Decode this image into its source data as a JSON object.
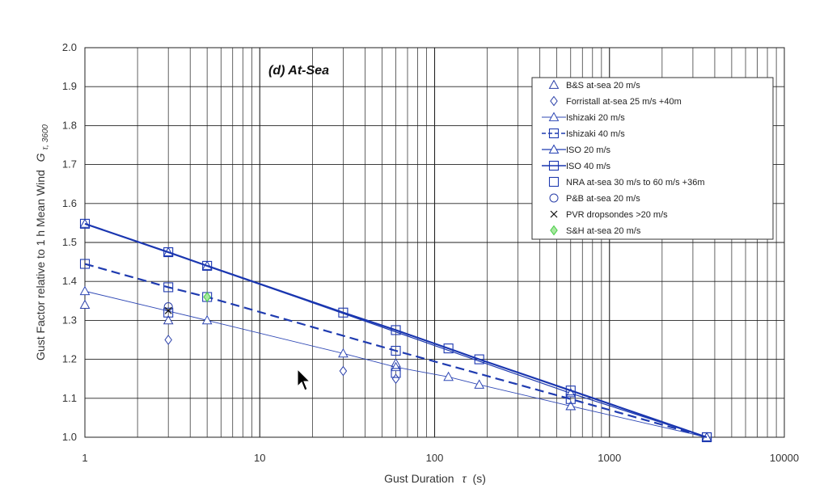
{
  "chart_data": {
    "type": "scatter",
    "title": "(d) At-Sea",
    "xlabel": "Gust Duration",
    "xlabel_symbol": "τ",
    "xlabel_unit": "(s)",
    "ylabel": "Gust Factor relative to 1 h Mean Wind",
    "ylabel_symbol": "G",
    "ylabel_subscript": "τ, 3600",
    "x_scale": "log",
    "xlim": [
      1,
      10000
    ],
    "ylim": [
      1.0,
      2.0
    ],
    "x_ticks": [
      "1",
      "10",
      "100",
      "1000",
      "10000"
    ],
    "y_ticks": [
      "1.0",
      "1.1",
      "1.2",
      "1.3",
      "1.4",
      "1.5",
      "1.6",
      "1.7",
      "1.8",
      "1.9",
      "2.0"
    ],
    "grid": true,
    "legend_position": "top-right",
    "series": [
      {
        "name": "B&S at-sea 20 m/s",
        "marker": "triangle",
        "line": "none",
        "color": "#2a3fa8",
        "points": [
          [
            1,
            1.34
          ],
          [
            3,
            1.3
          ],
          [
            60,
            1.19
          ],
          [
            600,
            1.08
          ]
        ]
      },
      {
        "name": "Forristall at-sea 25 m/s +40m",
        "marker": "diamond",
        "line": "none",
        "color": "#2a3fa8",
        "points": [
          [
            3,
            1.25
          ],
          [
            30,
            1.17
          ],
          [
            60,
            1.15
          ]
        ]
      },
      {
        "name": "Ishizaki 20 m/s",
        "marker": "triangle",
        "line": "thin",
        "color": "#2f48b5",
        "points": [
          [
            1,
            1.375
          ],
          [
            5,
            1.3
          ],
          [
            30,
            1.215
          ],
          [
            60,
            1.18
          ],
          [
            120,
            1.155
          ],
          [
            180,
            1.135
          ],
          [
            600,
            1.08
          ],
          [
            3600,
            1.0
          ]
        ]
      },
      {
        "name": "Ishizaki 40 m/s",
        "marker": "square",
        "line": "dashed",
        "color": "#1f3bb0",
        "points": [
          [
            1,
            1.445
          ],
          [
            3,
            1.385
          ],
          [
            5,
            1.36
          ],
          [
            60,
            1.222
          ],
          [
            600,
            1.098
          ],
          [
            3600,
            1.0
          ]
        ]
      },
      {
        "name": "ISO 20 m/s",
        "marker": "triangle",
        "line": "solid",
        "color": "#1f3bb0",
        "points": [
          [
            1,
            1.548
          ],
          [
            3,
            1.475
          ],
          [
            5,
            1.44
          ],
          [
            600,
            1.113
          ],
          [
            3600,
            1.0
          ]
        ]
      },
      {
        "name": "ISO 40 m/s",
        "marker": "square",
        "line": "thick",
        "color": "#1a36b0",
        "points": [
          [
            1,
            1.548
          ],
          [
            3,
            1.475
          ],
          [
            5,
            1.44
          ],
          [
            30,
            1.32
          ],
          [
            60,
            1.275
          ],
          [
            120,
            1.228
          ],
          [
            180,
            1.2
          ],
          [
            600,
            1.12
          ],
          [
            3600,
            1.0
          ]
        ]
      },
      {
        "name": "NRA at-sea 30 m/s to 60 m/s +36m",
        "marker": "square",
        "line": "none",
        "color": "#1f3bb0",
        "points": [
          [
            3,
            1.32
          ],
          [
            60,
            1.165
          ]
        ]
      },
      {
        "name": "P&B at-sea 20 m/s",
        "marker": "circle",
        "line": "none",
        "color": "#2a3fa8",
        "points": [
          [
            3,
            1.335
          ]
        ]
      },
      {
        "name": "PVR dropsondes >20 m/s",
        "marker": "x",
        "line": "none",
        "color": "#111111",
        "points": [
          [
            3,
            1.325
          ]
        ]
      },
      {
        "name": "S&H at-sea 20 m/s",
        "marker": "diamond",
        "line": "none",
        "color": "#44cc44",
        "points": [
          [
            5,
            1.36
          ]
        ]
      }
    ]
  }
}
